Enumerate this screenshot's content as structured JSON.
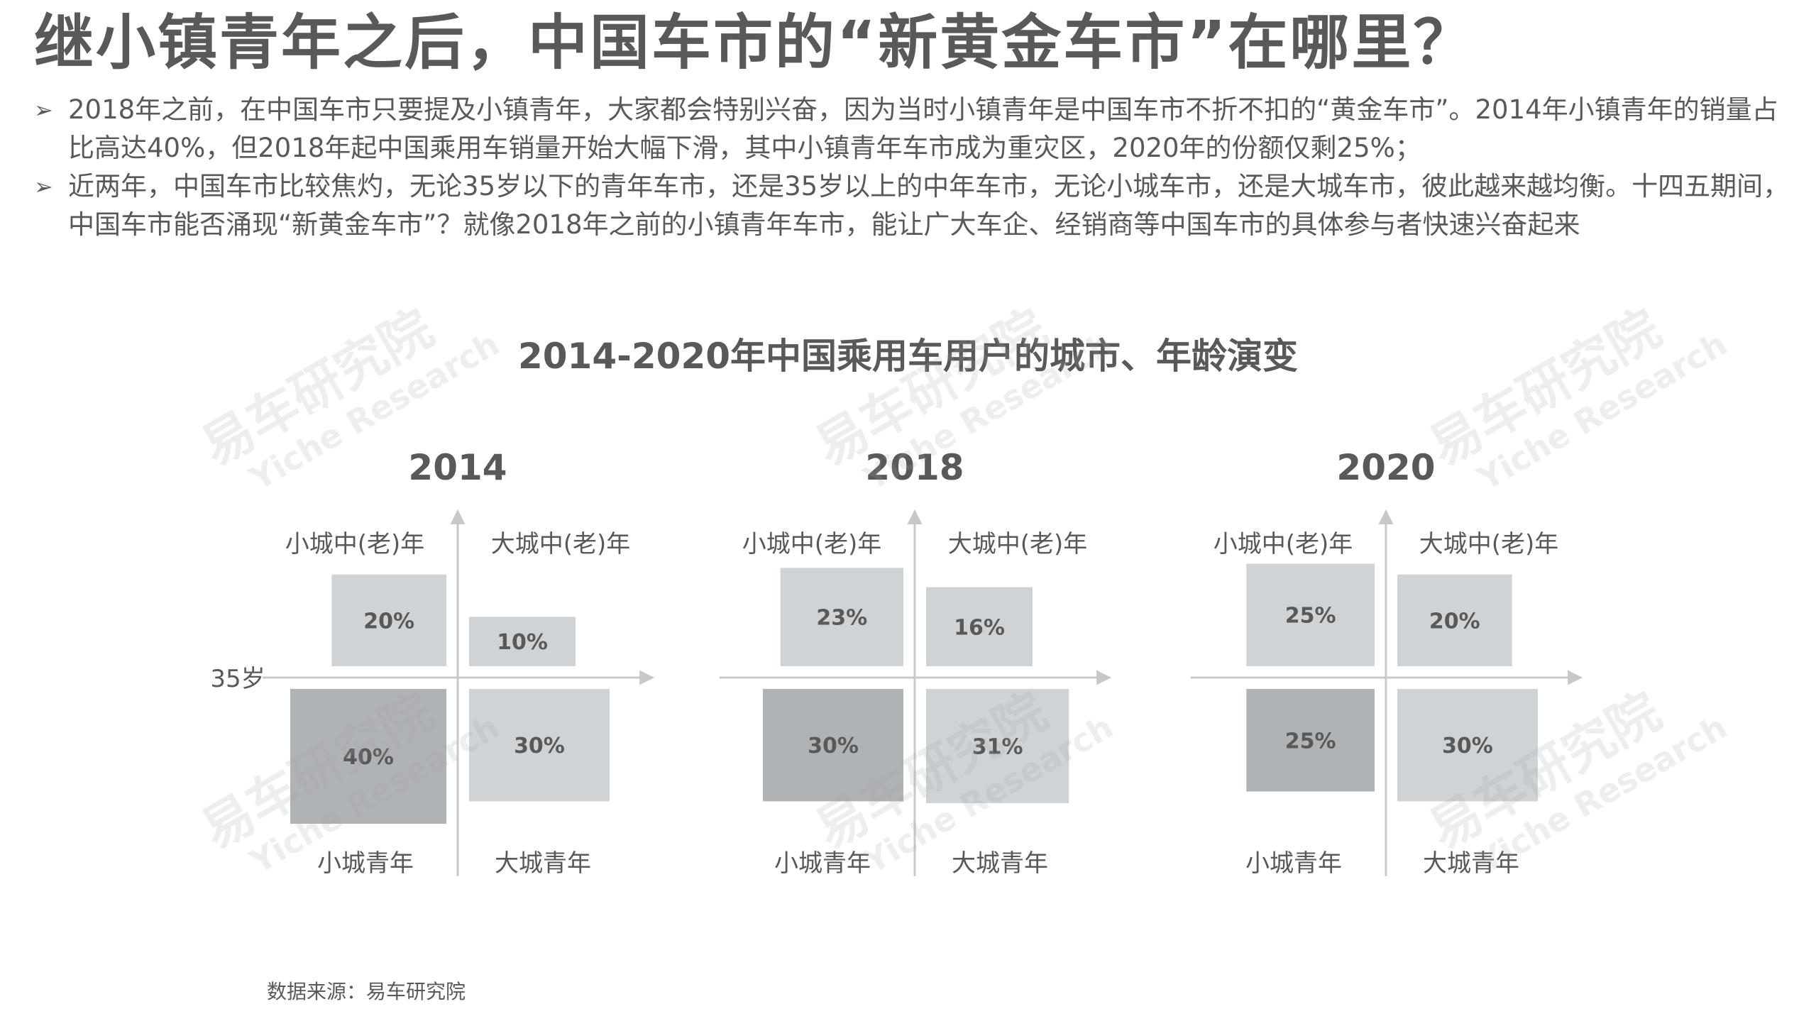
{
  "title": "继小镇青年之后，中国车市的“新黄金车市”在哪里？",
  "bullets": [
    {
      "marker": "➢",
      "text": "2018年之前，在中国车市只要提及小镇青年，大家都会特别兴奋，因为当时小镇青年是中国车市不折不扣的“黄金车市”。2014年小镇青年的销量占比高达40%，但2018年起中国乘用车销量开始大幅下滑，其中小镇青年车市成为重灾区，2020年的份额仅剩25%；"
    },
    {
      "marker": "➢",
      "text": "近两年，中国车市比较焦灼，无论35岁以下的青年车市，还是35岁以上的中年车市，无论小城车市，还是大城车市，彼此越来越均衡。十四五期间，中国车市能否涌现“新黄金车市”？就像2018年之前的小镇青年车市，能让广大车企、经销商等中国车市的具体参与者快速兴奋起来"
    }
  ],
  "source": "数据来源：易车研究院",
  "watermark": {
    "cn": "易车研究院",
    "en": "Yiche Research"
  },
  "colors": {
    "text": "#595959",
    "box_light": "#d0d3d6",
    "box_dark": "#b0b3b6",
    "axis": "#c8c8c8"
  },
  "chart_data": {
    "type": "quadrant",
    "title": "2014-2020年中国乘用车用户的城市、年龄演变",
    "axis_label": "35岁",
    "quadrant_labels": {
      "top_left": "小城中(老)年",
      "top_right": "大城中(老)年",
      "bottom_left": "小城青年",
      "bottom_right": "大城青年"
    },
    "panels": [
      {
        "year": "2014",
        "top_left": 20,
        "top_right": 10,
        "bottom_left": 40,
        "bottom_right": 30,
        "labels": [
          "20%",
          "10%",
          "40%",
          "30%"
        ]
      },
      {
        "year": "2018",
        "top_left": 23,
        "top_right": 16,
        "bottom_left": 30,
        "bottom_right": 31,
        "labels": [
          "23%",
          "16%",
          "30%",
          "31%"
        ]
      },
      {
        "year": "2020",
        "top_left": 25,
        "top_right": 20,
        "bottom_left": 25,
        "bottom_right": 30,
        "labels": [
          "25%",
          "20%",
          "25%",
          "30%"
        ]
      }
    ],
    "highlight_quadrant": "bottom_left"
  }
}
